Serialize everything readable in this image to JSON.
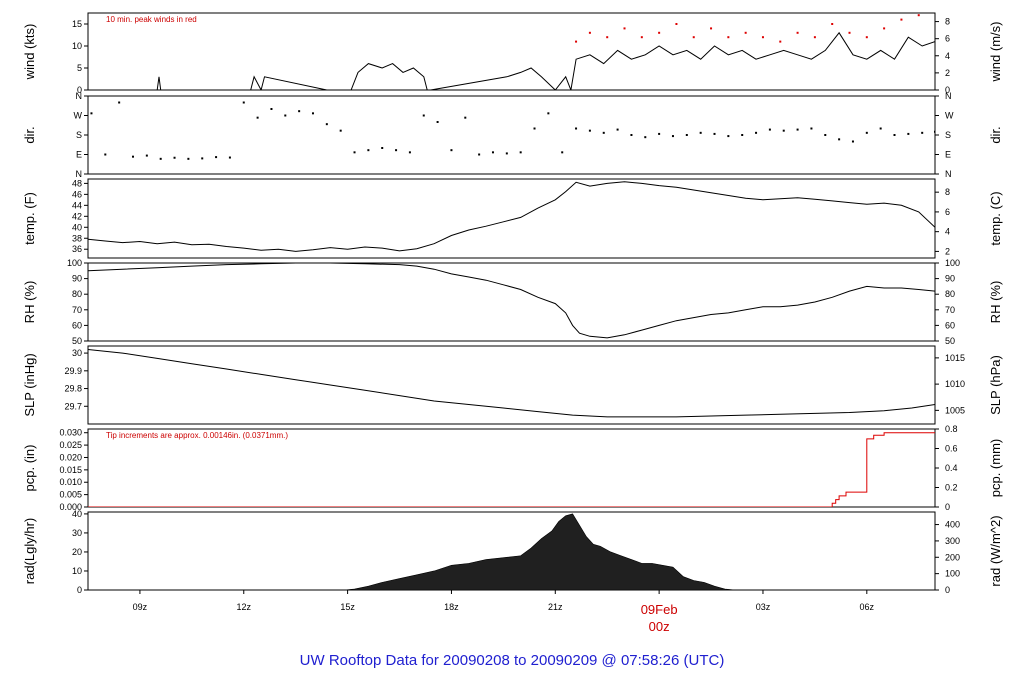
{
  "footer": {
    "title": "UW Rooftop Data for 20090208  to  20090209 @ 07:58:26  (UTC)"
  },
  "colors": {
    "line": "#000000",
    "peak": "#dd0000",
    "precip": "#dd0000",
    "note": "#cc0000",
    "footer": "#2020d0",
    "fill": "#202020"
  },
  "x_axis": {
    "range_hours": [
      7.5,
      31.97
    ],
    "ticks": [
      {
        "h": 9,
        "label": "09z"
      },
      {
        "h": 12,
        "label": "12z"
      },
      {
        "h": 15,
        "label": "15z"
      },
      {
        "h": 18,
        "label": "18z"
      },
      {
        "h": 21,
        "label": "21z"
      },
      {
        "h": 24,
        "label": "00z",
        "day_label": "09Feb",
        "highlight": true
      },
      {
        "h": 27,
        "label": "03z"
      },
      {
        "h": 30,
        "label": "06z"
      }
    ]
  },
  "chart_data": [
    {
      "type": "line",
      "id": "wind",
      "ylabel_left": "wind (kts)",
      "ylabel_right": "wind (m/s)",
      "ylim": [
        0,
        17.5
      ],
      "yticks_left": [
        0,
        5,
        10,
        15
      ],
      "yticks_right": [
        {
          "v": 0,
          "at": 0
        },
        {
          "v": 2,
          "at": 3.89
        },
        {
          "v": 4,
          "at": 7.78
        },
        {
          "v": 6,
          "at": 11.66
        },
        {
          "v": 8,
          "at": 15.55
        }
      ],
      "annotation": "10 min. peak winds in red",
      "series": [
        {
          "role": "speed",
          "x": [
            7.5,
            9.5,
            9.55,
            9.6,
            12.2,
            12.3,
            12.5,
            12.6,
            14.4,
            15.1,
            15.3,
            15.6,
            16.0,
            16.3,
            16.6,
            16.9,
            17.2,
            17.3,
            17.4,
            19.6,
            20.0,
            20.3,
            20.6,
            21.0,
            21.3,
            21.45,
            21.6,
            22.0,
            22.4,
            22.8,
            23.2,
            23.6,
            24.0,
            24.4,
            24.8,
            25.2,
            25.6,
            26.0,
            26.4,
            26.8,
            27.2,
            27.6,
            28.0,
            28.4,
            28.8,
            29.2,
            29.6,
            30.0,
            30.4,
            30.8,
            31.2,
            31.6,
            31.97
          ],
          "y": [
            0,
            0,
            3,
            0,
            0,
            3,
            0,
            3,
            0,
            0,
            4,
            6,
            5,
            6,
            4,
            5,
            3,
            0,
            0,
            3,
            4,
            5,
            3,
            0,
            3,
            0,
            7,
            8,
            6,
            9,
            7,
            8,
            10,
            8,
            9,
            7,
            10,
            8,
            9,
            7,
            8,
            9,
            8,
            7,
            9,
            13,
            8,
            7,
            9,
            7,
            12,
            10,
            11
          ]
        },
        {
          "role": "peak",
          "x": [
            21.6,
            22.0,
            22.5,
            23.0,
            23.5,
            24.0,
            24.5,
            25.0,
            25.5,
            26.0,
            26.5,
            27.0,
            27.5,
            28.0,
            28.5,
            29.0,
            29.5,
            30.0,
            30.5,
            31.0,
            31.5
          ],
          "y": [
            11,
            13,
            12,
            14,
            12,
            13,
            15,
            12,
            14,
            12,
            13,
            12,
            11,
            13,
            12,
            15,
            13,
            12,
            14,
            16,
            17
          ]
        }
      ]
    },
    {
      "type": "scatter",
      "id": "dir",
      "ylabel_left": "dir.",
      "ylabel_right": "dir.",
      "ylim": [
        0,
        360
      ],
      "yticks": [
        {
          "v": 0,
          "label": "N"
        },
        {
          "v": 90,
          "label": "E"
        },
        {
          "v": 180,
          "label": "S"
        },
        {
          "v": 270,
          "label": "W"
        },
        {
          "v": 360,
          "label": "N"
        }
      ],
      "series": [
        {
          "x": [
            7.6,
            8.0,
            8.4,
            8.8,
            9.2,
            9.6,
            10.0,
            10.4,
            10.8,
            11.2,
            11.6,
            12.0,
            12.4,
            12.8,
            13.2,
            13.6,
            14.0,
            14.4,
            14.8,
            15.2,
            15.6,
            16.0,
            16.4,
            16.8,
            17.2,
            17.6,
            18.0,
            18.4,
            18.8,
            19.2,
            19.6,
            20.0,
            20.4,
            20.8,
            21.2,
            21.6,
            22.0,
            22.4,
            22.8,
            23.2,
            23.6,
            24.0,
            24.4,
            24.8,
            25.2,
            25.6,
            26.0,
            26.4,
            26.8,
            27.2,
            27.6,
            28.0,
            28.4,
            28.8,
            29.2,
            29.6,
            30.0,
            30.4,
            30.8,
            31.2,
            31.6,
            31.97
          ],
          "y": [
            280,
            90,
            330,
            80,
            85,
            70,
            75,
            70,
            72,
            78,
            76,
            330,
            260,
            300,
            270,
            290,
            280,
            230,
            200,
            100,
            110,
            120,
            110,
            100,
            270,
            240,
            110,
            260,
            90,
            100,
            95,
            100,
            210,
            280,
            100,
            210,
            200,
            190,
            205,
            180,
            170,
            185,
            175,
            180,
            190,
            185,
            175,
            180,
            190,
            205,
            200,
            205,
            210,
            180,
            160,
            150,
            190,
            210,
            180,
            185,
            190,
            195
          ]
        }
      ]
    },
    {
      "type": "line",
      "id": "temp",
      "ylabel_left": "temp. (F)",
      "ylabel_right": "temp. (C)",
      "ylim": [
        34.4,
        48.8
      ],
      "yticks_left": [
        36,
        38,
        40,
        42,
        44,
        46,
        48
      ],
      "yticks_right": [
        {
          "v": 2,
          "at": 35.6
        },
        {
          "v": 4,
          "at": 39.2
        },
        {
          "v": 6,
          "at": 42.8
        },
        {
          "v": 8,
          "at": 46.4
        }
      ],
      "series": [
        {
          "x": [
            7.5,
            8.0,
            8.5,
            9.0,
            9.5,
            10.0,
            10.5,
            11.0,
            11.5,
            12.0,
            12.5,
            13.0,
            13.5,
            14.0,
            14.5,
            15.0,
            15.5,
            16.0,
            16.5,
            17.0,
            17.5,
            18.0,
            18.5,
            19.0,
            19.5,
            20.0,
            20.5,
            21.0,
            21.3,
            21.6,
            22.0,
            22.5,
            23.0,
            23.5,
            24.0,
            24.5,
            25.0,
            25.5,
            26.0,
            26.5,
            27.0,
            27.5,
            28.0,
            28.5,
            29.0,
            29.5,
            30.0,
            30.5,
            31.0,
            31.5,
            31.97
          ],
          "y": [
            37.8,
            37.5,
            37.2,
            37.4,
            37.0,
            37.3,
            36.8,
            36.9,
            36.5,
            36.2,
            35.8,
            36.0,
            35.6,
            35.9,
            36.3,
            36.0,
            36.4,
            36.2,
            35.7,
            36.1,
            37.0,
            38.5,
            39.5,
            40.2,
            41.0,
            41.8,
            43.5,
            45.0,
            46.5,
            48.2,
            47.5,
            48.0,
            48.3,
            48.0,
            47.6,
            47.3,
            46.8,
            46.3,
            45.8,
            45.3,
            45.0,
            45.2,
            45.4,
            45.1,
            44.8,
            44.5,
            44.2,
            44.4,
            44.0,
            42.8,
            40.0
          ]
        }
      ]
    },
    {
      "type": "line",
      "id": "rh",
      "ylabel_left": "RH (%)",
      "ylabel_right": "RH (%)",
      "ylim": [
        50,
        100
      ],
      "yticks_left": [
        50,
        60,
        70,
        80,
        90,
        100
      ],
      "yticks_right": [
        {
          "v": 50,
          "at": 50
        },
        {
          "v": 60,
          "at": 60
        },
        {
          "v": 70,
          "at": 70
        },
        {
          "v": 80,
          "at": 80
        },
        {
          "v": 90,
          "at": 90
        },
        {
          "v": 100,
          "at": 100
        }
      ],
      "series": [
        {
          "x": [
            7.5,
            8.5,
            9.5,
            10.5,
            11.5,
            12.5,
            13.5,
            14.5,
            15.5,
            16.5,
            17.0,
            17.5,
            18.0,
            18.5,
            19.0,
            19.5,
            20.0,
            20.5,
            21.0,
            21.3,
            21.5,
            21.7,
            22.0,
            22.5,
            23.0,
            23.5,
            24.0,
            24.5,
            25.0,
            25.5,
            26.0,
            26.5,
            27.0,
            27.5,
            28.0,
            28.5,
            29.0,
            29.5,
            30.0,
            30.5,
            31.0,
            31.5,
            31.97
          ],
          "y": [
            95,
            96,
            97,
            98,
            99,
            99.5,
            100,
            100,
            99.5,
            99,
            98,
            96,
            93,
            91,
            89,
            86,
            83,
            78,
            74,
            68,
            60,
            55,
            53,
            52,
            54,
            57,
            60,
            63,
            65,
            67,
            68,
            70,
            72,
            72,
            73,
            75,
            78,
            82,
            85,
            84,
            84,
            83,
            82
          ]
        }
      ]
    },
    {
      "type": "line",
      "id": "slp",
      "ylabel_left": "SLP (inHg)",
      "ylabel_right": "SLP (hPa)",
      "ylim": [
        29.6,
        30.04
      ],
      "yticks_left": [
        29.7,
        29.8,
        29.9,
        30.0
      ],
      "yticks_right": [
        {
          "v": 1005,
          "at": 29.677
        },
        {
          "v": 1010,
          "at": 29.825
        },
        {
          "v": 1015,
          "at": 29.973
        }
      ],
      "series": [
        {
          "x": [
            7.5,
            8.5,
            9.5,
            10.5,
            11.5,
            12.5,
            13.5,
            14.5,
            15.5,
            16.5,
            17.5,
            18.5,
            19.5,
            20.5,
            21.5,
            22.5,
            23.5,
            24.5,
            25.5,
            26.5,
            27.5,
            28.5,
            29.5,
            30.5,
            31.3,
            31.97
          ],
          "y": [
            30.02,
            30.0,
            29.97,
            29.94,
            29.91,
            29.88,
            29.85,
            29.82,
            29.79,
            29.76,
            29.73,
            29.71,
            29.69,
            29.67,
            29.65,
            29.64,
            29.64,
            29.64,
            29.645,
            29.65,
            29.655,
            29.66,
            29.665,
            29.675,
            29.69,
            29.71
          ]
        }
      ]
    },
    {
      "type": "line",
      "id": "pcp",
      "ylabel_left": "pcp. (in)",
      "ylabel_right": "pcp. (mm)",
      "ylim": [
        0,
        0.0315
      ],
      "yticks_left": [
        0.0,
        0.005,
        0.01,
        0.015,
        0.02,
        0.025,
        0.03
      ],
      "ytick_labels_left": [
        "0.000",
        "0.005",
        "0.010",
        "0.015",
        "0.020",
        "0.025",
        "0.030"
      ],
      "yticks_right": [
        {
          "v": 0,
          "at": 0
        },
        {
          "v": 0.2,
          "at": 0.00787
        },
        {
          "v": 0.4,
          "at": 0.01575
        },
        {
          "v": 0.6,
          "at": 0.02362
        },
        {
          "v": 0.8,
          "at": 0.0315
        }
      ],
      "annotation": "Tip increments are approx. 0.00146in. (0.0371mm.)",
      "series": [
        {
          "x": [
            7.5,
            28.9,
            29.0,
            29.0,
            29.1,
            29.1,
            29.2,
            29.2,
            29.4,
            29.4,
            30.0,
            30.0,
            30.2,
            30.2,
            30.5,
            30.5,
            31.97
          ],
          "y": [
            0,
            0,
            0,
            0.0015,
            0.0015,
            0.003,
            0.003,
            0.0045,
            0.0045,
            0.006,
            0.006,
            0.0275,
            0.0275,
            0.029,
            0.029,
            0.03,
            0.03
          ]
        }
      ]
    },
    {
      "type": "area",
      "id": "rad",
      "ylabel_left": "rad(Lgly/hr)",
      "ylabel_right": "rad (W/m^2)",
      "ylim": [
        0,
        41
      ],
      "yticks_left": [
        0,
        10,
        20,
        30,
        40
      ],
      "yticks_right": [
        {
          "v": 0,
          "at": 0
        },
        {
          "v": 100,
          "at": 8.6
        },
        {
          "v": 200,
          "at": 17.2
        },
        {
          "v": 300,
          "at": 25.8
        },
        {
          "v": 400,
          "at": 34.4
        }
      ],
      "series": [
        {
          "x": [
            7.5,
            14.9,
            15.2,
            15.6,
            16.0,
            16.5,
            17.0,
            17.5,
            18.0,
            18.5,
            19.0,
            19.5,
            20.0,
            20.3,
            20.6,
            20.9,
            21.1,
            21.3,
            21.5,
            21.7,
            21.9,
            22.1,
            22.3,
            22.6,
            22.9,
            23.2,
            23.5,
            23.8,
            24.1,
            24.4,
            24.7,
            25.0,
            25.3,
            25.6,
            25.9,
            26.2,
            26.5,
            31.97
          ],
          "y": [
            0,
            0,
            0.5,
            2,
            4,
            6,
            8,
            10,
            13,
            14,
            16,
            17,
            18,
            22,
            27,
            31,
            36,
            39,
            40,
            34,
            28,
            24,
            23,
            20,
            18,
            16,
            14,
            14,
            13,
            12,
            7,
            5,
            4,
            2,
            0.5,
            0,
            0,
            0
          ]
        }
      ]
    }
  ]
}
